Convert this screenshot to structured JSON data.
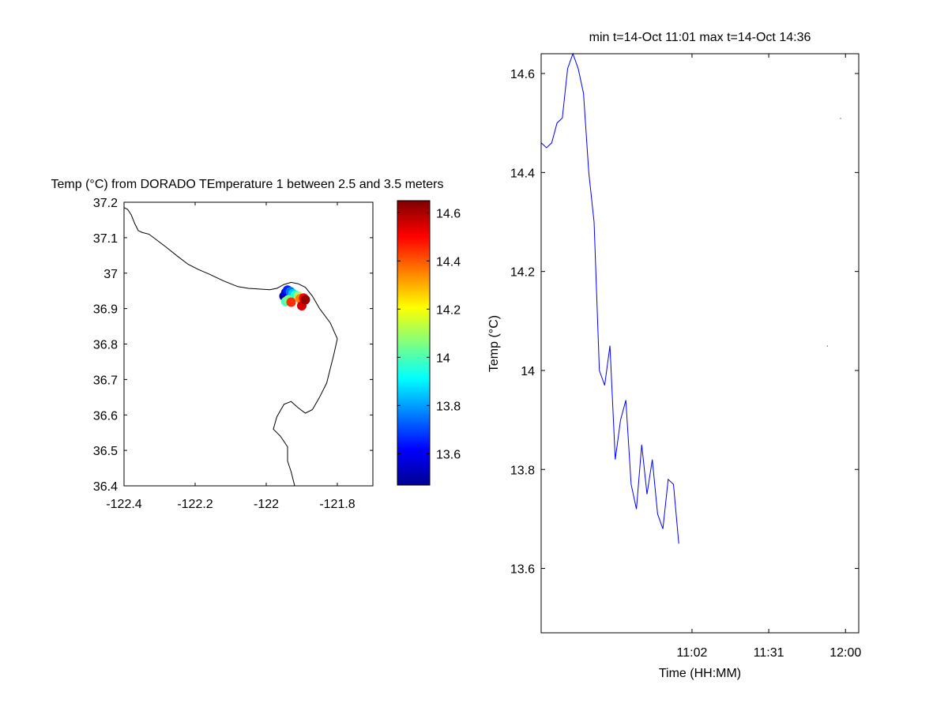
{
  "figure": {
    "background": "#ffffff"
  },
  "chart_data": [
    {
      "type": "scatter",
      "title": "Temp (°C) from DORADO TEmperature 1 between 2.5 and 3.5 meters",
      "xlim": [
        -122.4,
        -121.7
      ],
      "ylim": [
        36.4,
        37.2
      ],
      "xticks": [
        -122.4,
        -122.2,
        -122,
        -121.8
      ],
      "xtick_labels": [
        "-122.4",
        "-122.2",
        "-122",
        "-121.8"
      ],
      "yticks": [
        36.4,
        36.5,
        36.6,
        36.7,
        36.8,
        36.9,
        37,
        37.1,
        37.2
      ],
      "ytick_labels": [
        "36.4",
        "36.5",
        "36.6",
        "36.7",
        "36.8",
        "36.9",
        "37",
        "37.1",
        "37.2"
      ],
      "grid": false,
      "coastline": [
        [
          -122.4,
          37.185
        ],
        [
          -122.39,
          37.18
        ],
        [
          -122.38,
          37.165
        ],
        [
          -122.37,
          37.14
        ],
        [
          -122.36,
          37.12
        ],
        [
          -122.35,
          37.115
        ],
        [
          -122.33,
          37.11
        ],
        [
          -122.31,
          37.095
        ],
        [
          -122.28,
          37.072
        ],
        [
          -122.25,
          37.048
        ],
        [
          -122.22,
          37.025
        ],
        [
          -122.19,
          37.01
        ],
        [
          -122.16,
          36.997
        ],
        [
          -122.12,
          36.978
        ],
        [
          -122.08,
          36.962
        ],
        [
          -122.05,
          36.957
        ],
        [
          -122.02,
          36.955
        ],
        [
          -121.99,
          36.953
        ],
        [
          -121.97,
          36.957
        ],
        [
          -121.95,
          36.968
        ],
        [
          -121.93,
          36.974
        ],
        [
          -121.91,
          36.97
        ],
        [
          -121.89,
          36.96
        ],
        [
          -121.87,
          36.935
        ],
        [
          -121.85,
          36.9
        ],
        [
          -121.82,
          36.86
        ],
        [
          -121.8,
          36.815
        ],
        [
          -121.81,
          36.77
        ],
        [
          -121.82,
          36.73
        ],
        [
          -121.83,
          36.69
        ],
        [
          -121.85,
          36.65
        ],
        [
          -121.87,
          36.615
        ],
        [
          -121.89,
          36.605
        ],
        [
          -121.91,
          36.62
        ],
        [
          -121.93,
          36.638
        ],
        [
          -121.95,
          36.63
        ],
        [
          -121.97,
          36.595
        ],
        [
          -121.98,
          36.56
        ],
        [
          -121.96,
          36.54
        ],
        [
          -121.94,
          36.51
        ],
        [
          -121.94,
          36.47
        ],
        [
          -121.93,
          36.44
        ],
        [
          -121.92,
          36.4
        ]
      ],
      "points": [
        {
          "lon": -121.95,
          "lat": 36.935,
          "temp": 13.5
        },
        {
          "lon": -121.945,
          "lat": 36.945,
          "temp": 13.55
        },
        {
          "lon": -121.94,
          "lat": 36.952,
          "temp": 13.65
        },
        {
          "lon": -121.932,
          "lat": 36.948,
          "temp": 13.75
        },
        {
          "lon": -121.925,
          "lat": 36.942,
          "temp": 13.85
        },
        {
          "lon": -121.918,
          "lat": 36.938,
          "temp": 13.95
        },
        {
          "lon": -121.945,
          "lat": 36.92,
          "temp": 14.0
        },
        {
          "lon": -121.938,
          "lat": 36.925,
          "temp": 14.05
        },
        {
          "lon": -121.91,
          "lat": 36.935,
          "temp": 14.1
        },
        {
          "lon": -121.905,
          "lat": 36.928,
          "temp": 14.35
        },
        {
          "lon": -121.93,
          "lat": 36.918,
          "temp": 14.45
        },
        {
          "lon": -121.895,
          "lat": 36.93,
          "temp": 14.5
        },
        {
          "lon": -121.9,
          "lat": 36.908,
          "temp": 14.55
        },
        {
          "lon": -121.89,
          "lat": 36.925,
          "temp": 14.62
        }
      ]
    },
    {
      "type": "colorbar",
      "colormap": "jet",
      "range": [
        13.47,
        14.65
      ],
      "ticks": [
        13.6,
        13.8,
        14,
        14.2,
        14.4,
        14.6
      ],
      "tick_labels": [
        "13.6",
        "13.8",
        "14",
        "14.2",
        "14.4",
        "14.6"
      ]
    },
    {
      "type": "line",
      "title": "min t=14-Oct 11:01 max t=14-Oct 14:36",
      "xlabel": "Time (HH:MM)",
      "ylabel": "Temp (°C)",
      "xlim_minutes": [
        605,
        725
      ],
      "ylim": [
        13.47,
        14.64
      ],
      "xticks_minutes": [
        662,
        691,
        720
      ],
      "xtick_labels": [
        "11:02",
        "11:31",
        "12:00"
      ],
      "yticks": [
        13.6,
        13.8,
        14,
        14.2,
        14.4,
        14.6
      ],
      "ytick_labels": [
        "13.6",
        "13.8",
        "14",
        "14.2",
        "14.4",
        "14.6"
      ],
      "grid": false,
      "line_color": "#0000ff",
      "series": [
        {
          "x_minutes": [
            605,
            607,
            609,
            611,
            613,
            615,
            617,
            619,
            621,
            623,
            625,
            627,
            629,
            631,
            633,
            635,
            637,
            639,
            641,
            643,
            645,
            647,
            649,
            651,
            653,
            655,
            657,
            659,
            661,
            663,
            665,
            667,
            669,
            671,
            673,
            675,
            677,
            679,
            681,
            683,
            685,
            687,
            689,
            691
          ],
          "y": [
            14.46,
            14.45,
            14.46,
            14.5,
            14.51,
            14.61,
            14.64,
            14.61,
            14.56,
            14.4,
            14.3,
            14.0,
            13.97,
            14.05,
            13.82,
            13.9,
            13.94,
            13.77,
            13.72,
            13.85,
            13.75,
            13.82,
            13.71,
            13.68,
            13.78,
            13.77,
            13.65,
            null,
            null,
            null,
            null,
            null,
            null,
            null,
            null,
            null,
            null,
            null,
            null,
            null,
            null,
            null,
            null,
            null
          ]
        }
      ],
      "stray_points": [
        {
          "x_minutes": 713,
          "y": 14.05
        },
        {
          "x_minutes": 718,
          "y": 14.51
        }
      ]
    }
  ]
}
